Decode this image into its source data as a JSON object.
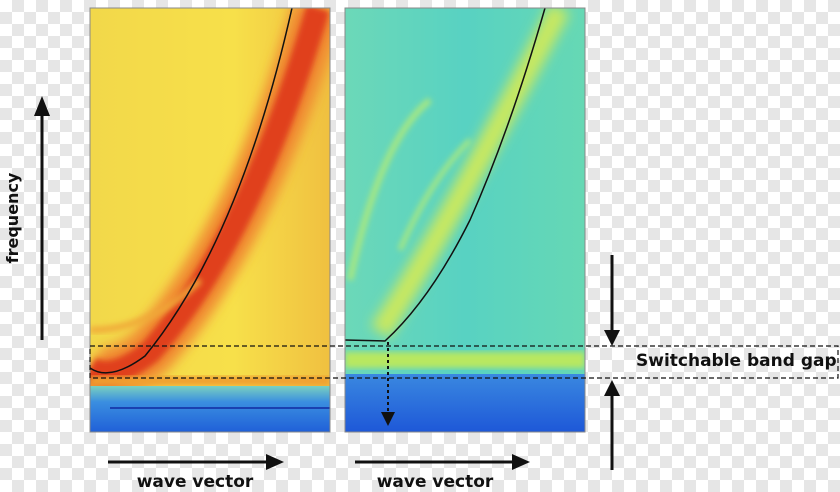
{
  "labels": {
    "y_axis": "frequency",
    "x_axis_left": "wave vector",
    "x_axis_right": "wave vector",
    "band_gap": "Switchable band gap"
  }
}
